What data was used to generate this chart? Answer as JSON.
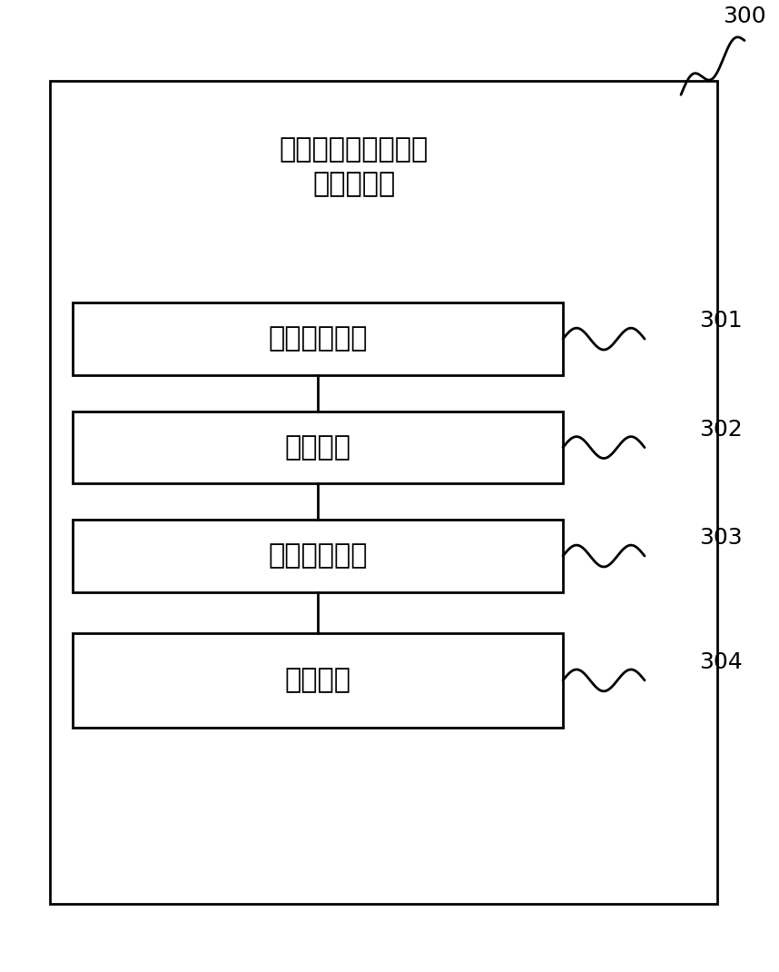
{
  "title_text": "发动机内燃运作的图\n像显示系统",
  "outer_box_label": "300",
  "blocks": [
    {
      "label": "第一获取模块",
      "ref": "301"
    },
    {
      "label": "确定模块",
      "ref": "302"
    },
    {
      "label": "第二获取模块",
      "ref": "303"
    },
    {
      "label": "特效模块",
      "ref": "304"
    }
  ],
  "bg_color": "#ffffff",
  "box_edge_color": "#000000",
  "text_color": "#000000",
  "font_size_title": 22,
  "font_size_block": 22,
  "font_size_ref": 18
}
